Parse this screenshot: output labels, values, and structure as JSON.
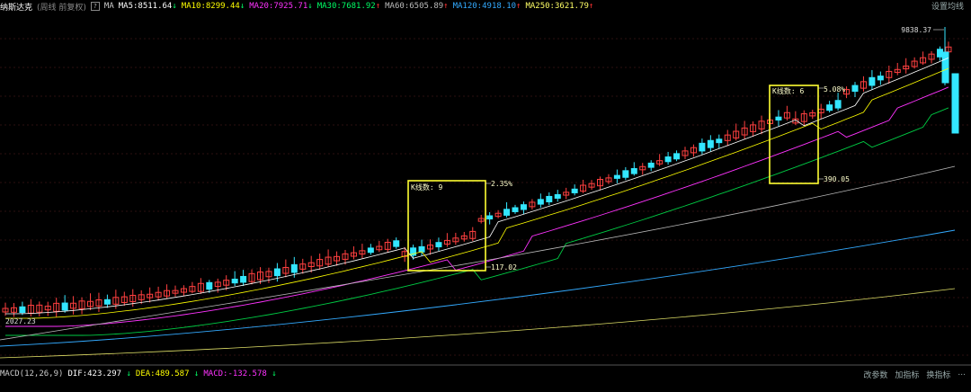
{
  "header": {
    "title": "纳斯达克",
    "subtitle": "(周线 前复权)",
    "help_glyph": "?",
    "ma_label": "MA",
    "ma_items": [
      {
        "text": "MA5:8511.64",
        "arrow": "↓",
        "color": "#ffffff",
        "arrow_color": "#00ff66"
      },
      {
        "text": "MA10:8299.44",
        "arrow": "↓",
        "color": "#ffff00",
        "arrow_color": "#00ff66"
      },
      {
        "text": "MA20:7925.71",
        "arrow": "↓",
        "color": "#ff33ff",
        "arrow_color": "#00ff66"
      },
      {
        "text": "MA30:7681.92",
        "arrow": "↑",
        "color": "#00ff66",
        "arrow_color": "#ff3333"
      },
      {
        "text": "MA60:6505.89",
        "arrow": "↑",
        "color": "#bbbbbb",
        "arrow_color": "#ff3333"
      },
      {
        "text": "MA120:4918.10",
        "arrow": "↑",
        "color": "#33aaff",
        "arrow_color": "#ff3333"
      },
      {
        "text": "MA250:3621.79",
        "arrow": "↑",
        "color": "#ffff66",
        "arrow_color": "#ff3333"
      }
    ],
    "settings_label": "设置均线"
  },
  "macd": {
    "label": "MACD(12,26,9)",
    "items": [
      {
        "text": "DIF:423.297",
        "arrow": "↓",
        "color": "#ffffff",
        "arrow_color": "#00ff66"
      },
      {
        "text": "DEA:489.587",
        "arrow": "↓",
        "color": "#ffff00",
        "arrow_color": "#00ff66"
      },
      {
        "text": "MACD:-132.578",
        "arrow": "↓",
        "color": "#ff33ff",
        "arrow_color": "#00ff66"
      }
    ],
    "buttons": [
      "改参数",
      "加指标",
      "换指标"
    ],
    "more_glyph": "..."
  },
  "annotations": {
    "box1": {
      "label": "K线数: 9",
      "pct": "2.35%",
      "value": "117.02"
    },
    "box2": {
      "label": "K线数: 6",
      "pct": "5.08%",
      "value": "390.05"
    },
    "high_label": "9838.37",
    "low_label": "2027.23"
  },
  "colors": {
    "background": "#000000",
    "up": "#ff4040",
    "down": "#33e6ff",
    "box": "#ffff33",
    "grid": "#5a2020"
  },
  "chart_data": {
    "type": "candlestick",
    "timeframe": "weekly",
    "price_high": 9838.37,
    "price_low": 2027.23
  }
}
